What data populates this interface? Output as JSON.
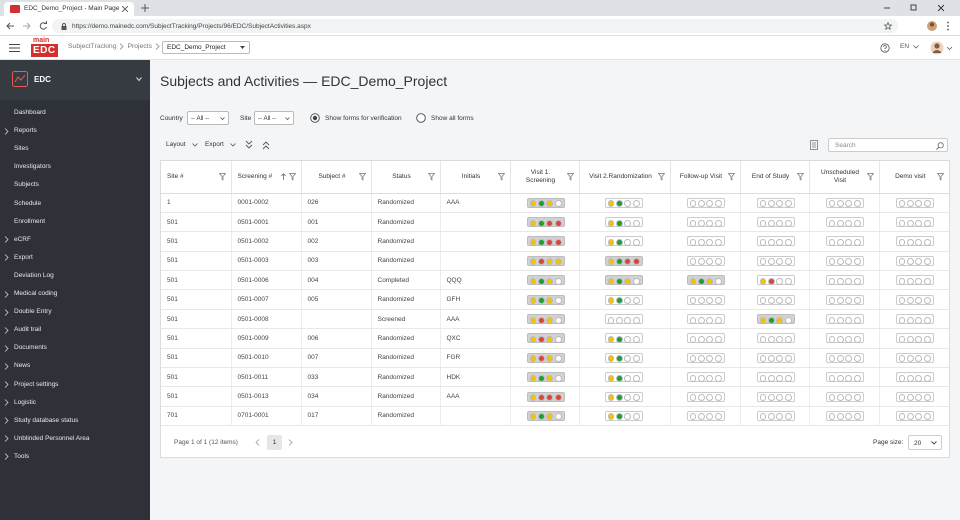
{
  "browser": {
    "tab_title": "EDC_Demo_Project - Main Page",
    "url": "https://demo.mainedc.com/SubjectTracking/Projects/96/EDC/SubjectActivities.aspx"
  },
  "app_header": {
    "logo_top": "main",
    "logo_bottom": "EDC",
    "breadcrumb": [
      "SubjectTracking",
      "Projects"
    ],
    "project": "EDC_Demo_Project",
    "language": "EN"
  },
  "sidebar": {
    "title": "EDC",
    "menu": [
      {
        "label": "Dashboard",
        "submenu": false
      },
      {
        "label": "Reports",
        "submenu": true
      },
      {
        "label": "Sites",
        "submenu": false
      },
      {
        "label": "Investigators",
        "submenu": false
      },
      {
        "label": "Subjects",
        "submenu": false
      },
      {
        "label": "Schedule",
        "submenu": false
      },
      {
        "label": "Enrollment",
        "submenu": false
      },
      {
        "label": "eCRF",
        "submenu": true
      },
      {
        "label": "Export",
        "submenu": true
      },
      {
        "label": "Deviation Log",
        "submenu": false
      },
      {
        "label": "Medical coding",
        "submenu": true
      },
      {
        "label": "Double Entry",
        "submenu": true
      },
      {
        "label": "Audit trail",
        "submenu": true
      },
      {
        "label": "Documents",
        "submenu": true
      },
      {
        "label": "News",
        "submenu": true
      },
      {
        "label": "Project settings",
        "submenu": true
      },
      {
        "label": "Logistic",
        "submenu": true
      },
      {
        "label": "Study database status",
        "submenu": true
      },
      {
        "label": "Unblinded Personnel Area",
        "submenu": true
      },
      {
        "label": "Tools",
        "submenu": true
      }
    ]
  },
  "page": {
    "title": "Subjects and Activities — EDC_Demo_Project"
  },
  "filters": {
    "country_label": "Country",
    "country_value": "-- All --",
    "site_label": "Site",
    "site_value": "-- All --",
    "radios": [
      {
        "label": "Show forms for verification",
        "checked": true
      },
      {
        "label": "Show all forms",
        "checked": false
      }
    ]
  },
  "toolbar": {
    "layout": "Layout",
    "export": "Export",
    "search_placeholder": "Search"
  },
  "table": {
    "columns": [
      {
        "label": "Site #",
        "sort": null
      },
      {
        "label": "Screening #",
        "sort": "asc"
      },
      {
        "label": "Subject #",
        "sort": null
      },
      {
        "label": "Status",
        "sort": null
      },
      {
        "label": "Initials",
        "sort": null
      },
      {
        "label": "Visit 1. Screening",
        "sort": null
      },
      {
        "label": "Visit 2.Randomization",
        "sort": null
      },
      {
        "label": "Follow-up Visit",
        "sort": null
      },
      {
        "label": "End of Study",
        "sort": null
      },
      {
        "label": "Unscheduled Visit",
        "sort": null
      },
      {
        "label": "Demo visit",
        "sort": null
      }
    ],
    "rows": [
      {
        "cells": [
          "1",
          "0001-0002",
          "026",
          "Randomized",
          "AAA"
        ],
        "visits": [
          "ygyw",
          "ygww",
          "wwww",
          "wwww",
          "wwww",
          "wwww"
        ]
      },
      {
        "cells": [
          "501",
          "0501-0001",
          "001",
          "Randomized",
          null
        ],
        "visits": [
          "ygrr",
          "ygww",
          "wwww",
          "wwww",
          "wwww",
          "wwww"
        ]
      },
      {
        "cells": [
          "501",
          "0501-0002",
          "002",
          "Randomized",
          null
        ],
        "visits": [
          "ygrr",
          "ygww",
          "wwww",
          "wwww",
          "wwww",
          "wwww"
        ]
      },
      {
        "cells": [
          "501",
          "0501-0003",
          "003",
          "Randomized",
          null
        ],
        "visits": [
          "yryy",
          "ygrr",
          "wwww",
          "wwww",
          "wwww",
          "wwww"
        ]
      },
      {
        "cells": [
          "501",
          "0501-0006",
          "004",
          "Completed",
          "QQQ"
        ],
        "visits": [
          "ygyw",
          "ygyw",
          "ygyw",
          "yrww",
          "wwww",
          "wwww"
        ]
      },
      {
        "cells": [
          "501",
          "0501-0007",
          "005",
          "Randomized",
          "GFH"
        ],
        "visits": [
          "ygyw",
          "ygww",
          "wwww",
          "wwww",
          "wwww",
          "wwww"
        ]
      },
      {
        "cells": [
          "501",
          "0501-0008",
          null,
          "Screened",
          "AAA"
        ],
        "visits": [
          "yryw",
          "wwww",
          "wwww",
          "ygyw",
          "wwww",
          "wwww"
        ]
      },
      {
        "cells": [
          "501",
          "0501-0009",
          "006",
          "Randomized",
          "QXC"
        ],
        "visits": [
          "yryw",
          "ygww",
          "wwww",
          "wwww",
          "wwww",
          "wwww"
        ]
      },
      {
        "cells": [
          "501",
          "0501-0010",
          "007",
          "Randomized",
          "FGR"
        ],
        "visits": [
          "yryw",
          "ygww",
          "wwww",
          "wwww",
          "wwww",
          "wwww"
        ]
      },
      {
        "cells": [
          "501",
          "0501-0011",
          "033",
          "Randomized",
          "HDK"
        ],
        "visits": [
          "ygyw",
          "ygww",
          "wwww",
          "wwww",
          "wwww",
          "wwww"
        ]
      },
      {
        "cells": [
          "501",
          "0501-0013",
          "034",
          "Randomized",
          "AAA"
        ],
        "visits": [
          "yrrr",
          "ygww",
          "wwww",
          "wwww",
          "wwww",
          "wwww"
        ]
      },
      {
        "cells": [
          "701",
          "0701-0001",
          "017",
          "Randomized",
          null
        ],
        "visits": [
          "ygyw",
          "ygww",
          "wwww",
          "wwww",
          "wwww",
          "wwww"
        ]
      }
    ]
  },
  "pager": {
    "summary": "Page 1 of 1 (12 items)",
    "current_page": "1",
    "page_size_label": "Page size:",
    "page_size": "20"
  }
}
